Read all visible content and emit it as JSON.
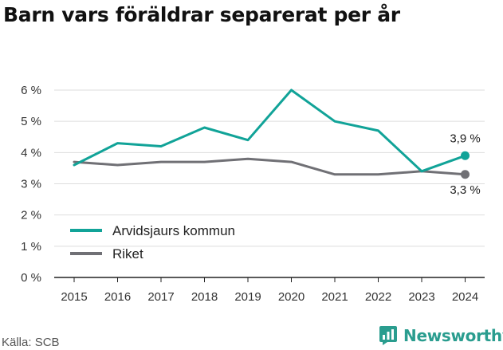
{
  "title": "Barn vars föräldrar separerat per år",
  "source": "Källa: SCB",
  "brand": {
    "name": "Newsworthy",
    "icon": "newsworthy-logo-icon",
    "color": "#2a9d8f"
  },
  "chart_data": {
    "type": "line",
    "title": "Barn vars föräldrar separerat per år",
    "xlabel": "",
    "ylabel": "",
    "categories": [
      "2015",
      "2016",
      "2017",
      "2018",
      "2019",
      "2020",
      "2021",
      "2022",
      "2023",
      "2024"
    ],
    "series": [
      {
        "name": "Arvidsjaurs kommun",
        "color": "#11a398",
        "values": [
          3.6,
          4.3,
          4.2,
          4.8,
          4.4,
          6.0,
          5.0,
          4.7,
          3.4,
          3.9
        ],
        "end_label": "3,9 %"
      },
      {
        "name": "Riket",
        "color": "#707075",
        "values": [
          3.7,
          3.6,
          3.7,
          3.7,
          3.8,
          3.7,
          3.3,
          3.3,
          3.4,
          3.3
        ],
        "end_label": "3,3 %"
      }
    ],
    "ylim": [
      0,
      6
    ],
    "yticks": [
      "0 %",
      "1 %",
      "2 %",
      "3 %",
      "4 %",
      "5 %",
      "6 %"
    ],
    "grid": true,
    "legend": "bottom-left"
  }
}
